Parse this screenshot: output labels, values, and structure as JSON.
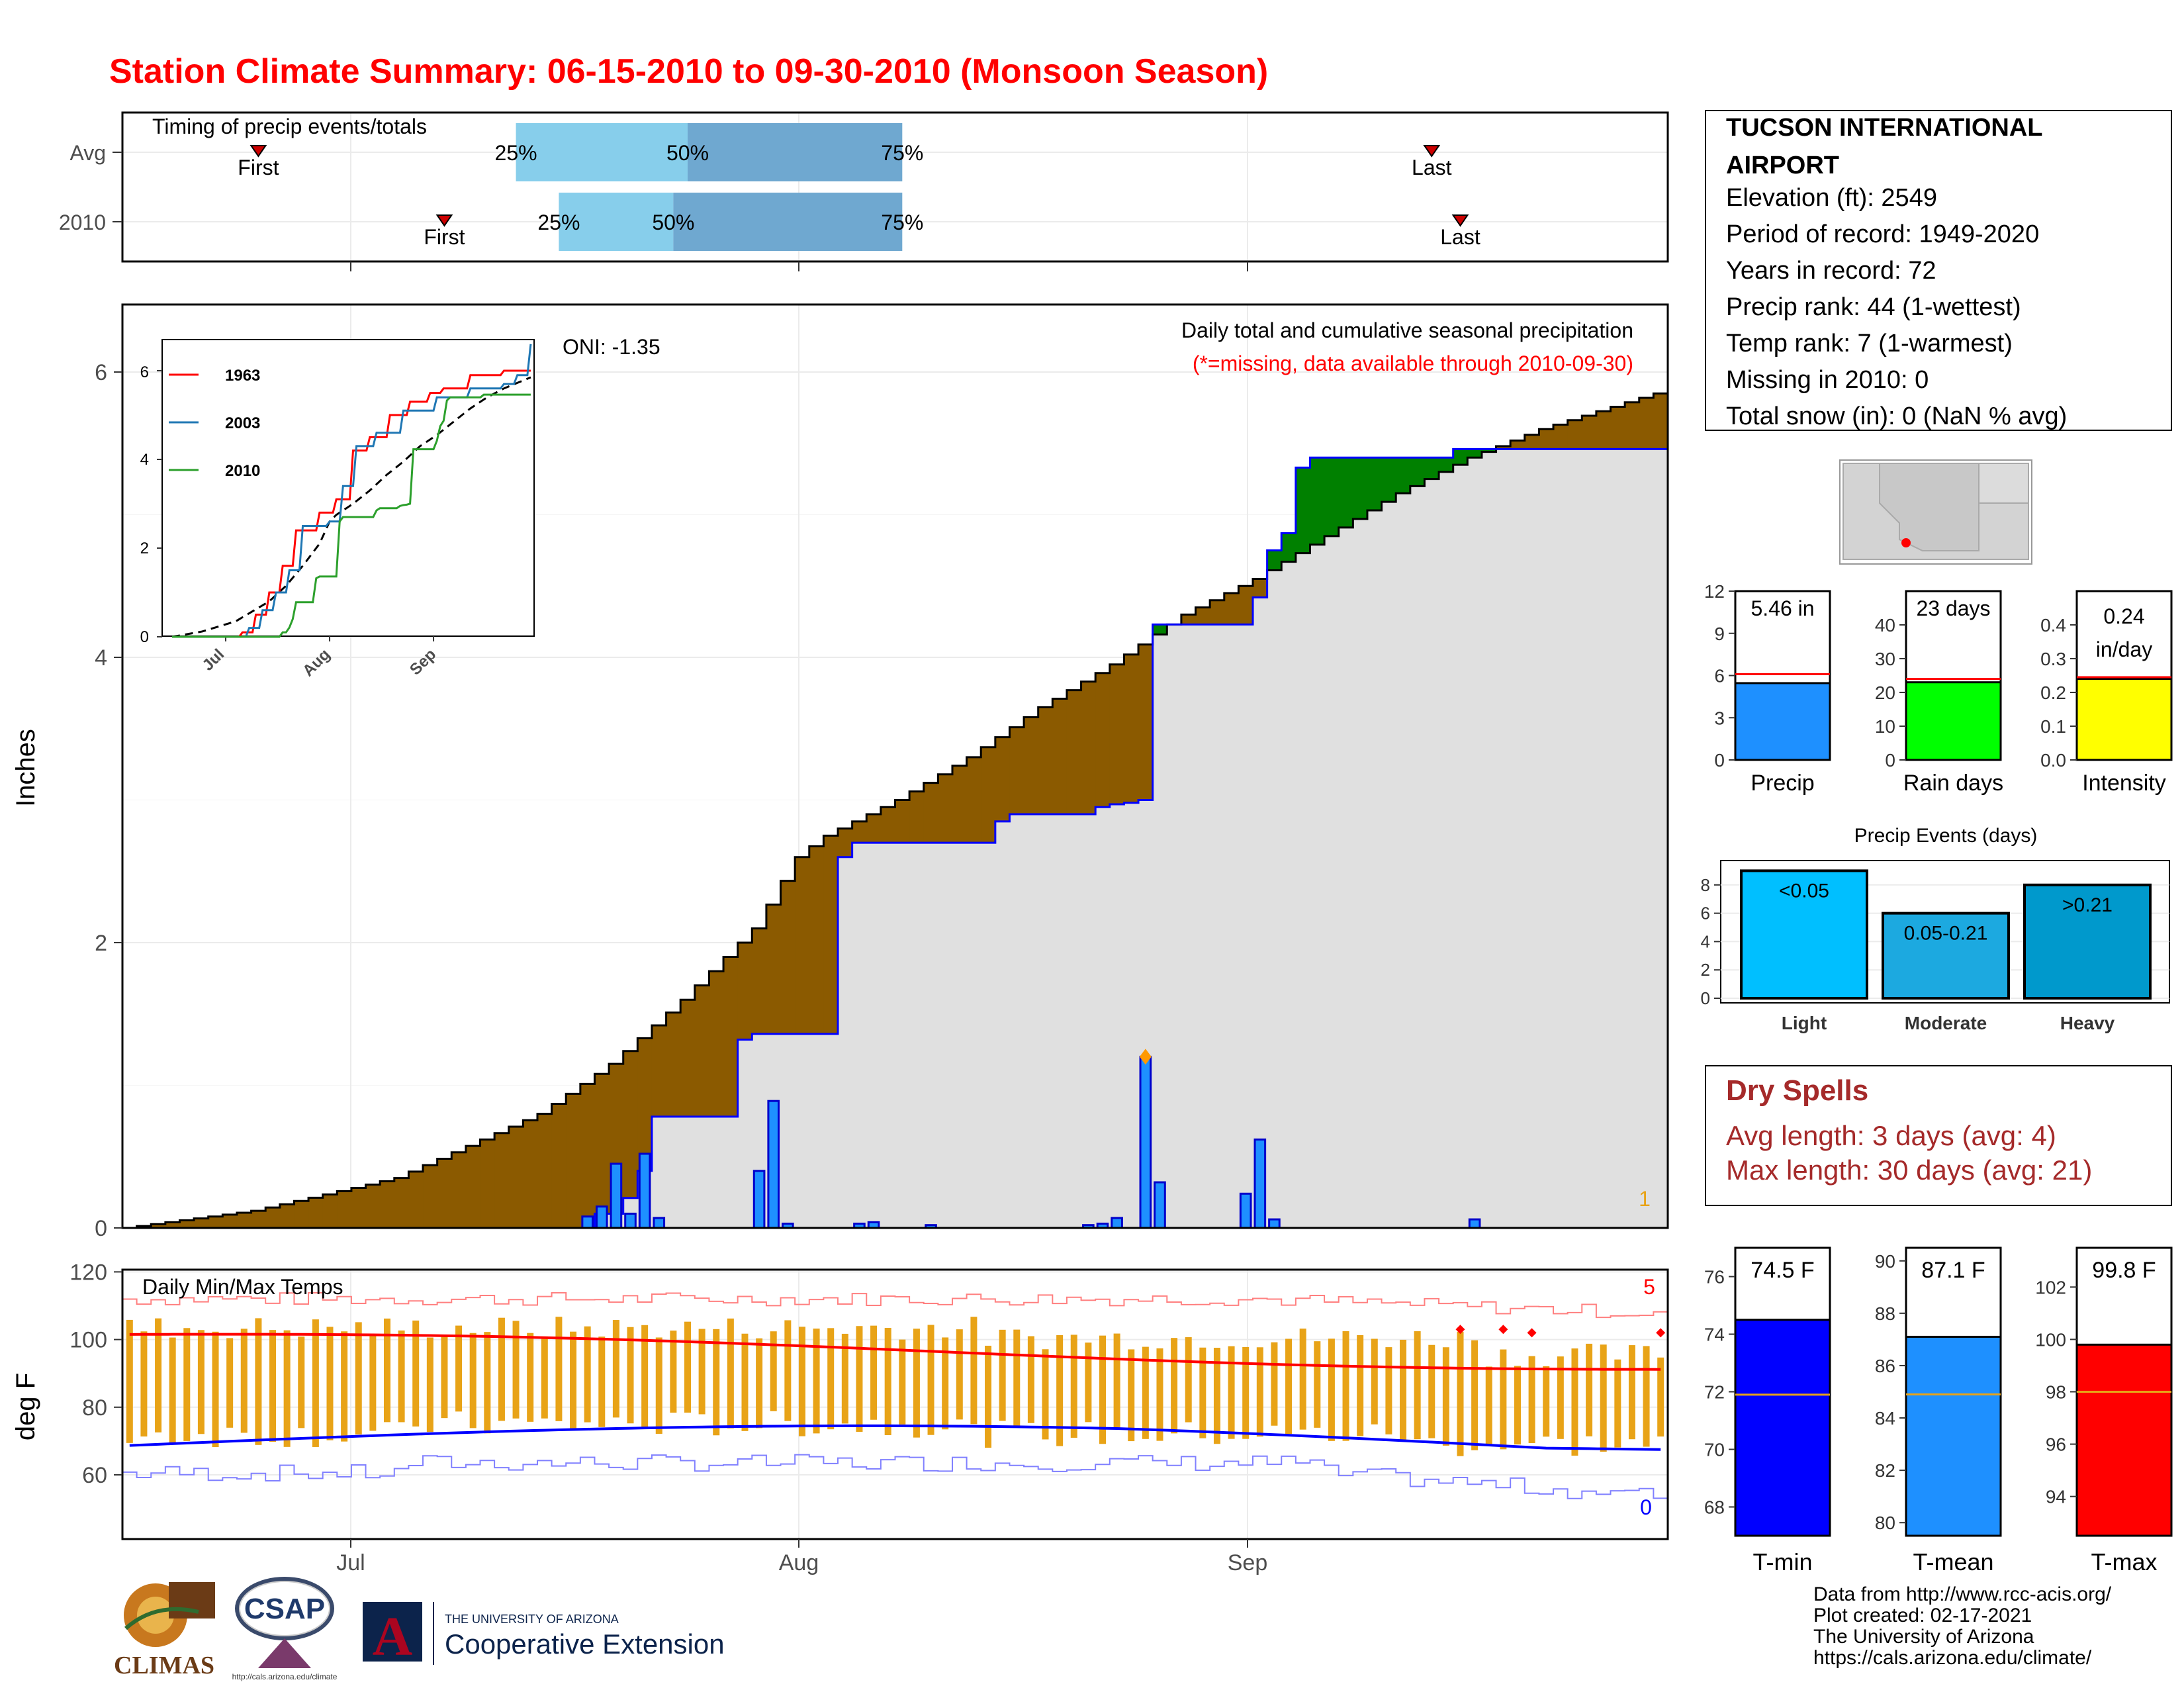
{
  "title": "Station Climate Summary: 06-15-2010 to 09-30-2010 (Monsoon Season)",
  "colors": {
    "title": "#ff0000",
    "brown": "#8B5A00",
    "green": "#008000",
    "gray": "#e0e0e0",
    "blue_bar": "#1E90FF",
    "orange": "#E8A317",
    "red_line": "#ff0000",
    "blue_line": "#0000ff",
    "dryspell": "#a52a2a"
  },
  "month_labels": [
    "Jul",
    "Aug",
    "Sep"
  ],
  "timing": {
    "title": "Timing of precip events/totals",
    "rows": [
      "Avg",
      "2010"
    ],
    "avg": {
      "first": "First",
      "last": "Last",
      "p25": "25%",
      "p50": "50%",
      "p75": "75%",
      "first_doy": 10,
      "last_doy": 92,
      "p25_doy": 28,
      "p50_doy": 40,
      "p75_doy": 55
    },
    "y2010": {
      "first": "First",
      "last": "Last",
      "p25": "25%",
      "p50": "50%",
      "p75": "75%",
      "first_doy": 23,
      "last_doy": 94,
      "p25_doy": 31,
      "p50_doy": 39,
      "p75_doy": 55
    }
  },
  "station": {
    "name": "TUCSON INTERNATIONAL AIRPORT",
    "lines": [
      "Elevation (ft): 2549",
      "Period of record: 1949-2020",
      "Years in record: 72",
      "Precip rank: 44 (1-wettest)",
      "Temp rank: 7 (1-warmest)",
      "Missing in 2010: 0",
      "Total snow (in): 0 (NaN % avg)"
    ]
  },
  "precip_panel": {
    "title": "Daily total and cumulative seasonal precipitation",
    "subtitle": "(*=missing, data available through 2010-09-30)",
    "oni": "ONI: -1.35",
    "ylabel": "Inches",
    "yticks": [
      "0",
      "2",
      "4",
      "6"
    ],
    "corner_label": "1"
  },
  "inset": {
    "yticks": [
      "0",
      "2",
      "4",
      "6"
    ],
    "xticks": [
      "Jul",
      "Aug",
      "Sep"
    ],
    "legend": [
      "1963",
      "2003",
      "2010"
    ]
  },
  "temp_panel": {
    "title": "Daily Min/Max Temps",
    "ylabel": "deg F",
    "yticks": [
      "60",
      "80",
      "100",
      "120"
    ],
    "max_count": "5",
    "min_count": "0"
  },
  "stat_bars": [
    {
      "label": "Precip",
      "value_text": "5.46 in",
      "value": 5.46,
      "avg": 6.1,
      "ymax": 12,
      "ticks": [
        "0",
        "3",
        "6",
        "9",
        "12"
      ],
      "color": "#1E90FF"
    },
    {
      "label": "Rain days",
      "value_text": "23 days",
      "value": 23,
      "avg": 24,
      "ymax": 50,
      "ticks": [
        "0",
        "10",
        "20",
        "30",
        "40"
      ],
      "color": "#00ff00"
    },
    {
      "label": "Intensity",
      "value_text": "0.24 in/day",
      "value": 0.24,
      "avg": 0.245,
      "ymax": 0.5,
      "ticks": [
        "0.0",
        "0.1",
        "0.2",
        "0.3",
        "0.4"
      ],
      "color": "#ffff00"
    }
  ],
  "events": {
    "title": "Precip Events (days)",
    "ticks": [
      "0",
      "2",
      "4",
      "6",
      "8"
    ],
    "bars": [
      {
        "label": "Light",
        "range": "<0.05",
        "value": 9,
        "color": "#00BFFF"
      },
      {
        "label": "Moderate",
        "range": "0.05-0.21",
        "value": 6,
        "color": "#1CA9E0"
      },
      {
        "label": "Heavy",
        "range": ">0.21",
        "value": 8,
        "color": "#0099CC"
      }
    ]
  },
  "dry_spells": {
    "title": "Dry Spells",
    "avg_line": "Avg length: 3 days (avg: 4)",
    "max_line": "Max length: 30 days (avg: 21)"
  },
  "temp_bars": [
    {
      "label": "T-min",
      "value_text": "74.5 F",
      "value": 74.5,
      "avg": 71.9,
      "ymin": 67,
      "ymax": 77,
      "ticks": [
        "68",
        "70",
        "72",
        "74",
        "76"
      ],
      "color": "#0000ff"
    },
    {
      "label": "T-mean",
      "value_text": "87.1 F",
      "value": 87.1,
      "avg": 84.9,
      "ymin": 79.5,
      "ymax": 90.5,
      "ticks": [
        "80",
        "82",
        "84",
        "86",
        "88",
        "90"
      ],
      "color": "#1E90FF"
    },
    {
      "label": "T-max",
      "value_text": "99.8 F",
      "value": 99.8,
      "avg": 98.0,
      "ymin": 92.5,
      "ymax": 103.5,
      "ticks": [
        "94",
        "96",
        "98",
        "100",
        "102"
      ],
      "color": "#ff0000"
    }
  ],
  "footer": {
    "lines": [
      "Data from http://www.rcc-acis.org/",
      "Plot created: 02-17-2021",
      "The University of Arizona",
      "https://cals.arizona.edu/climate/"
    ],
    "climas": "CLIMAS",
    "csap": "CSAP",
    "csap_url": "http://cals.arizona.edu/climate",
    "ua_small": "THE UNIVERSITY OF ARIZONA",
    "ua_big": "Cooperative Extension"
  },
  "chart_data": {
    "type": "area",
    "title": "Daily total and cumulative seasonal precipitation",
    "ylabel": "Inches",
    "ylim": [
      0,
      6.5
    ],
    "x_start": "06-15",
    "x_end": "09-30",
    "series": [
      {
        "name": "avg_cumulative",
        "x": [
          1,
          10,
          20,
          30,
          35,
          40,
          45,
          48,
          50,
          55,
          60,
          65,
          70,
          75,
          80,
          85,
          90,
          95,
          100,
          108
        ],
        "values": [
          0.0,
          0.12,
          0.35,
          0.8,
          1.15,
          1.6,
          2.1,
          2.6,
          2.75,
          3.0,
          3.3,
          3.65,
          3.95,
          4.3,
          4.55,
          4.85,
          5.15,
          5.4,
          5.6,
          5.85
        ]
      },
      {
        "name": "2010_cumulative",
        "x": [
          1,
          32,
          34,
          36,
          37,
          38,
          44,
          45,
          49,
          51,
          52,
          61,
          62,
          63,
          69,
          70,
          71,
          72,
          73,
          80,
          81,
          82,
          83,
          84,
          85,
          93,
          94,
          108
        ],
        "values": [
          0.0,
          0.0,
          0.1,
          0.21,
          0.4,
          0.78,
          1.32,
          1.36,
          1.36,
          2.6,
          2.7,
          2.7,
          2.85,
          2.9,
          2.95,
          2.97,
          2.98,
          3.0,
          4.23,
          4.42,
          4.75,
          4.87,
          5.33,
          5.4,
          5.4,
          5.4,
          5.46,
          5.46
        ]
      },
      {
        "name": "daily_2010",
        "x": [
          33,
          34,
          35,
          36,
          37,
          38,
          45,
          46,
          47,
          52,
          53,
          57,
          68,
          69,
          70,
          72,
          73,
          79,
          80,
          81,
          95
        ],
        "values": [
          0.08,
          0.15,
          0.45,
          0.1,
          0.52,
          0.07,
          0.4,
          0.89,
          0.03,
          0.03,
          0.04,
          0.02,
          0.02,
          0.03,
          0.07,
          1.2,
          0.32,
          0.24,
          0.62,
          0.06,
          0.06
        ]
      }
    ]
  }
}
